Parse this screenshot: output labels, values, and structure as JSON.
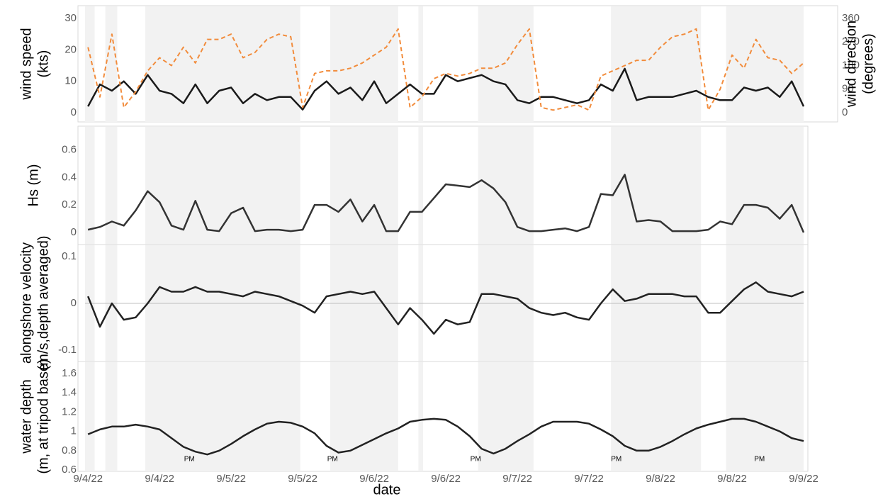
{
  "chart_data": [
    {
      "type": "line",
      "ylabel": [
        "wind speed",
        "(kts)"
      ],
      "y2label": [
        "wind direction",
        "(degrees)"
      ],
      "xlim": [
        -0.5,
        120
      ],
      "ylim": [
        0,
        30
      ],
      "yticks": [
        0,
        10,
        20,
        30
      ],
      "y2lim": [
        0,
        360
      ],
      "y2ticks": [
        0,
        90,
        180,
        270,
        360
      ],
      "shaded": [
        [
          -0.5,
          1.1
        ],
        [
          2.9,
          4.9
        ],
        [
          9.6,
          35.6
        ],
        [
          40.6,
          52
        ],
        [
          55.4,
          56.2
        ],
        [
          65.4,
          74.7
        ],
        [
          87.7,
          102.8
        ],
        [
          107,
          120
        ]
      ],
      "x": [
        0,
        2,
        4,
        6,
        8,
        10,
        12,
        14,
        16,
        18,
        20,
        22,
        24,
        26,
        28,
        30,
        32,
        34,
        36,
        38,
        40,
        42,
        44,
        46,
        48,
        50,
        52,
        54,
        56,
        58,
        60,
        62,
        64,
        66,
        68,
        70,
        72,
        74,
        76,
        78,
        80,
        82,
        84,
        86,
        88,
        90,
        92,
        94,
        96,
        98,
        100,
        102,
        104,
        106,
        108,
        110,
        112,
        114,
        116,
        118,
        120
      ],
      "series": [
        {
          "color": "#1a1a1a",
          "line_style": "solid",
          "values": [
            2,
            9,
            7,
            10,
            6,
            12,
            7,
            6,
            3,
            9,
            3,
            7,
            8,
            3,
            6,
            4,
            5,
            5,
            1,
            7,
            10,
            6,
            8,
            4,
            10,
            3,
            6,
            9,
            6,
            6,
            12,
            10,
            11,
            12,
            10,
            9,
            4,
            3,
            5,
            5,
            4,
            3,
            4,
            9,
            7,
            14,
            4,
            5,
            5,
            5,
            6,
            7,
            5,
            4,
            4,
            8,
            7,
            8,
            5,
            10,
            2
          ]
        },
        {
          "color": "#f28c3c",
          "line_style": "dashed",
          "axis": "y2",
          "values": [
            250,
            60,
            300,
            20,
            80,
            160,
            210,
            180,
            250,
            190,
            280,
            280,
            300,
            210,
            230,
            280,
            300,
            290,
            20,
            150,
            160,
            160,
            170,
            190,
            220,
            250,
            320,
            20,
            60,
            130,
            150,
            140,
            150,
            170,
            170,
            190,
            260,
            320,
            20,
            10,
            20,
            30,
            10,
            140,
            160,
            180,
            200,
            200,
            250,
            290,
            300,
            320,
            10,
            90,
            220,
            170,
            280,
            210,
            200,
            150,
            190
          ]
        }
      ]
    },
    {
      "type": "line",
      "ylabel": [
        "Hs (m)"
      ],
      "xlim": [
        -0.5,
        120
      ],
      "ylim": [
        0,
        0.7
      ],
      "yticks": [
        0,
        0.2,
        0.4,
        0.6
      ],
      "shaded": [
        [
          -0.5,
          1.1
        ],
        [
          2.9,
          4.9
        ],
        [
          9.6,
          35.6
        ],
        [
          40.6,
          52
        ],
        [
          55.4,
          56.2
        ],
        [
          65.4,
          74.7
        ],
        [
          87.7,
          102.8
        ],
        [
          107,
          120
        ]
      ],
      "x": [
        0,
        2,
        4,
        6,
        8,
        10,
        12,
        14,
        16,
        18,
        20,
        22,
        24,
        26,
        28,
        30,
        32,
        34,
        36,
        38,
        40,
        42,
        44,
        46,
        48,
        50,
        52,
        54,
        56,
        58,
        60,
        62,
        64,
        66,
        68,
        70,
        72,
        74,
        76,
        78,
        80,
        82,
        84,
        86,
        88,
        90,
        92,
        94,
        96,
        98,
        100,
        102,
        104,
        106,
        108,
        110,
        112,
        114,
        116,
        118,
        120
      ],
      "series": [
        {
          "color": "#333333",
          "line_style": "solid",
          "values": [
            0.02,
            0.04,
            0.08,
            0.05,
            0.16,
            0.3,
            0.22,
            0.05,
            0.02,
            0.23,
            0.02,
            0.01,
            0.14,
            0.18,
            0.01,
            0.02,
            0.02,
            0.01,
            0.02,
            0.2,
            0.2,
            0.15,
            0.24,
            0.08,
            0.2,
            0.01,
            0.01,
            0.15,
            0.15,
            0.25,
            0.35,
            0.34,
            0.33,
            0.38,
            0.32,
            0.22,
            0.04,
            0.01,
            0.01,
            0.02,
            0.03,
            0.01,
            0.04,
            0.28,
            0.27,
            0.42,
            0.08,
            0.09,
            0.08,
            0.01,
            0.01,
            0.01,
            0.02,
            0.08,
            0.06,
            0.2,
            0.2,
            0.18,
            0.1,
            0.2,
            0
          ]
        }
      ]
    },
    {
      "type": "line",
      "ylabel": [
        "alongshore velocity",
        "(m/s,depth averaged)"
      ],
      "xlim": [
        -0.5,
        120
      ],
      "ylim": [
        -0.1,
        0.1
      ],
      "yticks": [
        -0.1,
        0,
        0.1
      ],
      "zero_line": true,
      "shaded": [
        [
          -0.5,
          1.1
        ],
        [
          2.9,
          4.9
        ],
        [
          9.6,
          35.6
        ],
        [
          40.6,
          52
        ],
        [
          55.4,
          56.2
        ],
        [
          65.4,
          74.7
        ],
        [
          87.7,
          102.8
        ],
        [
          107,
          120
        ]
      ],
      "x": [
        0,
        2,
        4,
        6,
        8,
        10,
        12,
        14,
        16,
        18,
        20,
        22,
        24,
        26,
        28,
        30,
        32,
        34,
        36,
        38,
        40,
        42,
        44,
        46,
        48,
        50,
        52,
        54,
        56,
        58,
        60,
        62,
        64,
        66,
        68,
        70,
        72,
        74,
        76,
        78,
        80,
        82,
        84,
        86,
        88,
        90,
        92,
        94,
        96,
        98,
        100,
        102,
        104,
        106,
        108,
        110,
        112,
        114,
        116,
        118,
        120
      ],
      "series": [
        {
          "color": "#222222",
          "line_style": "solid",
          "values": [
            0.015,
            -0.05,
            0,
            -0.035,
            -0.03,
            0,
            0.035,
            0.025,
            0.025,
            0.035,
            0.025,
            0.025,
            0.02,
            0.015,
            0.025,
            0.02,
            0.015,
            0.005,
            -0.005,
            -0.02,
            0.015,
            0.02,
            0.025,
            0.02,
            0.025,
            -0.01,
            -0.045,
            -0.01,
            -0.035,
            -0.065,
            -0.035,
            -0.045,
            -0.04,
            0.02,
            0.02,
            0.015,
            0.01,
            -0.01,
            -0.02,
            -0.025,
            -0.02,
            -0.03,
            -0.035,
            0,
            0.03,
            0.005,
            0.01,
            0.02,
            0.02,
            0.02,
            0.015,
            0.015,
            -0.02,
            -0.02,
            0.005,
            0.03,
            0.045,
            0.025,
            0.02,
            0.015,
            0.025
          ]
        }
      ]
    },
    {
      "type": "line",
      "ylabel": [
        "water depth",
        "(m, at tripod base)"
      ],
      "xlabel": "date",
      "xlim": [
        -0.5,
        120
      ],
      "ylim": [
        0.6,
        1.6
      ],
      "yticks": [
        0.6,
        0.8,
        1,
        1.2,
        1.4,
        1.6
      ],
      "xticks": [
        {
          "value": 0,
          "label": "9/4/22"
        },
        {
          "value": 12,
          "label": "9/4/22"
        },
        {
          "value": 24,
          "label": "9/5/22"
        },
        {
          "value": 36,
          "label": "9/5/22"
        },
        {
          "value": 48,
          "label": "9/6/22"
        },
        {
          "value": 60,
          "label": "9/6/22"
        },
        {
          "value": 72,
          "label": "9/7/22"
        },
        {
          "value": 84,
          "label": "9/7/22"
        },
        {
          "value": 96,
          "label": "9/8/22"
        },
        {
          "value": 108,
          "label": "9/8/22"
        },
        {
          "value": 120,
          "label": "9/9/22"
        }
      ],
      "annotations": [
        {
          "text": "PM",
          "x": 17
        },
        {
          "text": "PM",
          "x": 41
        },
        {
          "text": "PM",
          "x": 65
        },
        {
          "text": "PM",
          "x": 88.6
        },
        {
          "text": "PM",
          "x": 112.6
        }
      ],
      "shaded": [
        [
          -0.5,
          1.1
        ],
        [
          2.9,
          4.9
        ],
        [
          9.6,
          35.6
        ],
        [
          40.6,
          52
        ],
        [
          55.4,
          56.2
        ],
        [
          65.4,
          74.7
        ],
        [
          87.7,
          102.8
        ],
        [
          107,
          120
        ]
      ],
      "x": [
        0,
        2,
        4,
        6,
        8,
        10,
        12,
        14,
        16,
        18,
        20,
        22,
        24,
        26,
        28,
        30,
        32,
        34,
        36,
        38,
        40,
        42,
        44,
        46,
        48,
        50,
        52,
        54,
        56,
        58,
        60,
        62,
        64,
        66,
        68,
        70,
        72,
        74,
        76,
        78,
        80,
        82,
        84,
        86,
        88,
        90,
        92,
        94,
        96,
        98,
        100,
        102,
        104,
        106,
        108,
        110,
        112,
        114,
        116,
        118,
        120
      ],
      "series": [
        {
          "color": "#222222",
          "line_style": "solid",
          "values": [
            0.97,
            1.02,
            1.05,
            1.05,
            1.07,
            1.05,
            1.02,
            0.93,
            0.84,
            0.79,
            0.76,
            0.8,
            0.87,
            0.95,
            1.02,
            1.08,
            1.1,
            1.09,
            1.05,
            0.98,
            0.85,
            0.78,
            0.8,
            0.86,
            0.92,
            0.98,
            1.03,
            1.1,
            1.12,
            1.13,
            1.12,
            1.05,
            0.95,
            0.82,
            0.77,
            0.82,
            0.9,
            0.97,
            1.05,
            1.1,
            1.1,
            1.1,
            1.08,
            1.02,
            0.95,
            0.85,
            0.8,
            0.8,
            0.84,
            0.9,
            0.97,
            1.03,
            1.07,
            1.1,
            1.13,
            1.13,
            1.1,
            1.05,
            1,
            0.93,
            0.9
          ]
        }
      ]
    }
  ]
}
